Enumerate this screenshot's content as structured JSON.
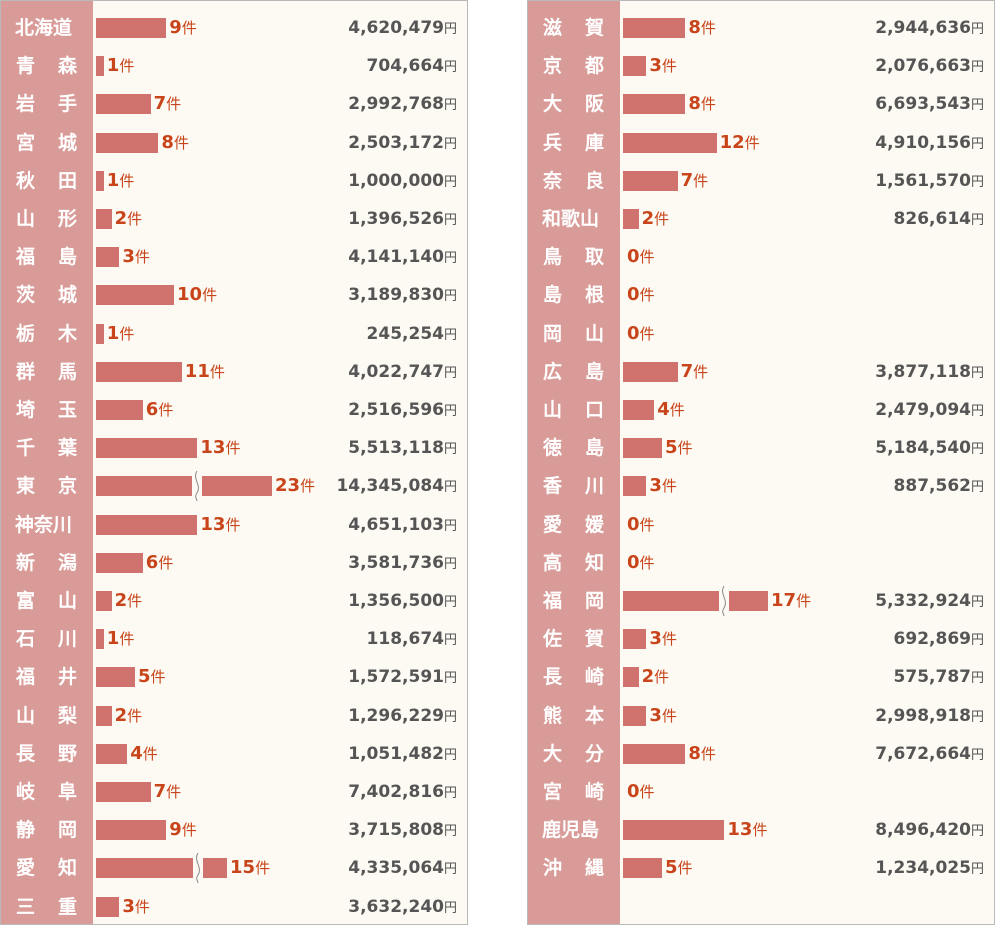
{
  "chart_data": [
    {
      "type": "bar",
      "count_unit": "件",
      "amount_unit": "円",
      "categories": [
        "北海道",
        "青 森",
        "岩 手",
        "宮 城",
        "秋 田",
        "山 形",
        "福 島",
        "茨 城",
        "栃 木",
        "群 馬",
        "埼 玉",
        "千 葉",
        "東 京",
        "神奈川",
        "新 潟",
        "富 山",
        "石 川",
        "福 井",
        "山 梨",
        "長 野",
        "岐 阜",
        "静 岡",
        "愛 知",
        "三 重"
      ],
      "series": [
        {
          "values": [
            9,
            1,
            7,
            8,
            1,
            2,
            3,
            10,
            1,
            11,
            6,
            13,
            23,
            13,
            6,
            2,
            1,
            5,
            2,
            4,
            7,
            9,
            15,
            3
          ]
        },
        {
          "values": [
            "4,620,479",
            "704,664",
            "2,992,768",
            "2,503,172",
            "1,000,000",
            "1,396,526",
            "4,141,140",
            "3,189,830",
            "245,254",
            "4,022,747",
            "2,516,596",
            "5,513,118",
            "14,345,084",
            "4,651,103",
            "3,581,736",
            "1,356,500",
            "118,674",
            "1,572,591",
            "1,296,229",
            "1,051,482",
            "7,402,816",
            "3,715,808",
            "4,335,064",
            "3,632,240"
          ]
        }
      ],
      "broken_bars": [
        "東 京",
        "愛 知"
      ]
    },
    {
      "type": "bar",
      "count_unit": "件",
      "amount_unit": "円",
      "categories": [
        "滋 賀",
        "京 都",
        "大 阪",
        "兵 庫",
        "奈 良",
        "和歌山",
        "鳥 取",
        "島 根",
        "岡 山",
        "広 島",
        "山 口",
        "徳 島",
        "香 川",
        "愛 媛",
        "高 知",
        "福 岡",
        "佐 賀",
        "長 崎",
        "熊 本",
        "大 分",
        "宮 崎",
        "鹿児島",
        "沖 縄"
      ],
      "series": [
        {
          "values": [
            8,
            3,
            8,
            12,
            7,
            2,
            0,
            0,
            0,
            7,
            4,
            5,
            3,
            0,
            0,
            17,
            3,
            2,
            3,
            8,
            0,
            13,
            5
          ]
        },
        {
          "values": [
            "2,944,636",
            "2,076,663",
            "6,693,543",
            "4,910,156",
            "1,561,570",
            "826,614",
            "",
            "",
            "",
            "3,877,118",
            "2,479,094",
            "5,184,540",
            "887,562",
            "",
            "",
            "5,332,924",
            "692,869",
            "575,787",
            "2,998,918",
            "7,672,664",
            "",
            "8,496,420",
            "1,234,025"
          ]
        }
      ],
      "broken_bars": [
        "福 岡"
      ]
    }
  ]
}
